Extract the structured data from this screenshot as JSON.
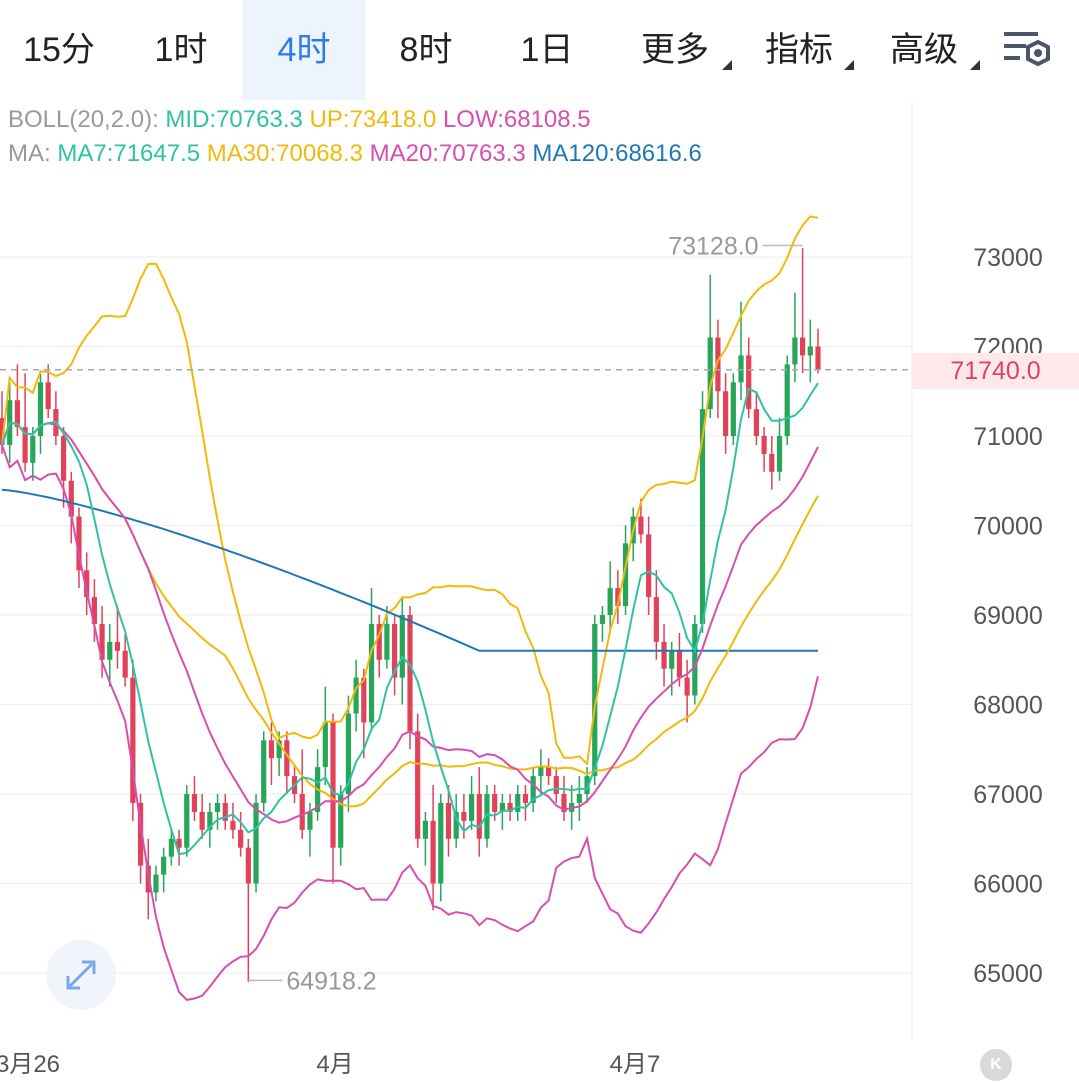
{
  "tabs": [
    {
      "label": "15分",
      "active": false
    },
    {
      "label": "1时",
      "active": false
    },
    {
      "label": "4时",
      "active": true
    },
    {
      "label": "8时",
      "active": false
    },
    {
      "label": "1日",
      "active": false
    },
    {
      "label": "更多",
      "active": false,
      "dropdown": true
    },
    {
      "label": "指标",
      "active": false,
      "dropdown": true
    },
    {
      "label": "高级",
      "active": false,
      "dropdown": true
    }
  ],
  "settings_icon": "chart-settings-icon",
  "boll_legend": {
    "prefix": "BOLL(20,2.0):",
    "mid": "MID:70763.3",
    "up": "UP:73418.0",
    "low": "LOW:68108.5"
  },
  "ma_legend": {
    "prefix": "MA:",
    "ma7": "MA7:71647.5",
    "ma30": "MA30:70068.3",
    "ma20": "MA20:70763.3",
    "ma120": "MA120:68616.6"
  },
  "current_price": "71740.0",
  "expand_icon": "expand-icon",
  "k_button": "K",
  "colors": {
    "up": "#27a65a",
    "down": "#e0425a",
    "ma7": "#2fc2a3",
    "ma30": "#f0b90b",
    "ma20": "#d64fb0",
    "ma120": "#1f78b4",
    "boll": "#f0b90b",
    "grid": "#eeeeee"
  },
  "chart_data": {
    "type": "candlestick",
    "y_ticks": [
      65000,
      66000,
      67000,
      68000,
      69000,
      70000,
      71000,
      72000,
      73000
    ],
    "y_tick_labels": [
      "65000",
      "66000",
      "67000",
      "68000",
      "69000",
      "70000",
      "71000",
      "72000",
      "73000"
    ],
    "x_labels": [
      "3月26",
      "4月",
      "4月7"
    ],
    "annotations": [
      {
        "label": "73128.0",
        "value": 73128.0
      },
      {
        "label": "64918.2",
        "value": 64918.2
      }
    ],
    "candles": [
      [
        71200,
        71500,
        70800,
        70900
      ],
      [
        70900,
        71600,
        70700,
        71400
      ],
      [
        71400,
        71800,
        71000,
        71100
      ],
      [
        71100,
        71700,
        70600,
        70700
      ],
      [
        70700,
        71100,
        70500,
        71000
      ],
      [
        71000,
        71700,
        70800,
        71600
      ],
      [
        71600,
        71800,
        71200,
        71300
      ],
      [
        71300,
        71500,
        70900,
        71000
      ],
      [
        71000,
        71100,
        70200,
        70500
      ],
      [
        70500,
        70600,
        69800,
        70100
      ],
      [
        70100,
        70200,
        69300,
        69500
      ],
      [
        69500,
        69700,
        69000,
        69200
      ],
      [
        69200,
        69400,
        68700,
        68900
      ],
      [
        68900,
        69100,
        68300,
        68500
      ],
      [
        68500,
        68900,
        68200,
        68700
      ],
      [
        68700,
        69100,
        68400,
        68600
      ],
      [
        68600,
        68800,
        68200,
        68300
      ],
      [
        68300,
        68500,
        66700,
        66900
      ],
      [
        66900,
        67000,
        66000,
        66200
      ],
      [
        66200,
        66500,
        65600,
        65900
      ],
      [
        65900,
        66200,
        65800,
        66100
      ],
      [
        66100,
        66400,
        65900,
        66300
      ],
      [
        66300,
        66600,
        66200,
        66500
      ],
      [
        66500,
        66600,
        66200,
        66400
      ],
      [
        66400,
        67100,
        66300,
        67000
      ],
      [
        67000,
        67200,
        66700,
        66800
      ],
      [
        66800,
        67000,
        66500,
        66600
      ],
      [
        66600,
        66900,
        66400,
        66800
      ],
      [
        66800,
        67000,
        66600,
        66900
      ],
      [
        66900,
        67000,
        66600,
        66700
      ],
      [
        66700,
        66900,
        66500,
        66600
      ],
      [
        66600,
        66800,
        66300,
        66400
      ],
      [
        66400,
        66500,
        64900,
        66000
      ],
      [
        66000,
        67000,
        65900,
        66900
      ],
      [
        66900,
        67700,
        66800,
        67600
      ],
      [
        67600,
        67800,
        67100,
        67400
      ],
      [
        67400,
        67700,
        67200,
        67600
      ],
      [
        67600,
        67700,
        67000,
        67200
      ],
      [
        67200,
        67300,
        66900,
        67000
      ],
      [
        67000,
        67500,
        66500,
        66600
      ],
      [
        66600,
        66900,
        66300,
        66800
      ],
      [
        66800,
        67500,
        66700,
        67300
      ],
      [
        67300,
        68200,
        67100,
        67800
      ],
      [
        67800,
        67900,
        66000,
        66400
      ],
      [
        66400,
        67100,
        66200,
        67000
      ],
      [
        67000,
        68100,
        66800,
        67900
      ],
      [
        67900,
        68500,
        67700,
        68300
      ],
      [
        68300,
        68400,
        67400,
        67800
      ],
      [
        67800,
        69300,
        67700,
        68900
      ],
      [
        68900,
        69000,
        68300,
        68500
      ],
      [
        68500,
        69100,
        68400,
        68900
      ],
      [
        68900,
        69000,
        68100,
        68300
      ],
      [
        68300,
        69200,
        68000,
        69000
      ],
      [
        69000,
        69100,
        67500,
        67700
      ],
      [
        67700,
        67900,
        66400,
        66500
      ],
      [
        66500,
        66800,
        66200,
        66700
      ],
      [
        66700,
        67100,
        65700,
        66000
      ],
      [
        66000,
        67000,
        65800,
        66900
      ],
      [
        66900,
        67100,
        66300,
        66500
      ],
      [
        66500,
        67000,
        66400,
        66800
      ],
      [
        66800,
        67000,
        66500,
        66700
      ],
      [
        66700,
        67200,
        66600,
        67000
      ],
      [
        67000,
        67300,
        66300,
        66500
      ],
      [
        66500,
        67100,
        66400,
        67000
      ],
      [
        67000,
        67100,
        66700,
        66800
      ],
      [
        66800,
        67000,
        66600,
        66900
      ],
      [
        66900,
        67000,
        66700,
        66800
      ],
      [
        66800,
        67100,
        66700,
        67000
      ],
      [
        67000,
        67100,
        66700,
        66900
      ],
      [
        66900,
        67300,
        66800,
        67200
      ],
      [
        67200,
        67500,
        67000,
        67300
      ],
      [
        67300,
        67400,
        67100,
        67200
      ],
      [
        67200,
        67300,
        66900,
        67000
      ],
      [
        67000,
        67200,
        66700,
        66800
      ],
      [
        66800,
        67100,
        66600,
        66900
      ],
      [
        66900,
        67200,
        66700,
        67000
      ],
      [
        67000,
        67300,
        66900,
        67200
      ],
      [
        67200,
        69000,
        67100,
        68900
      ],
      [
        68900,
        69100,
        68700,
        69000
      ],
      [
        69000,
        69600,
        68800,
        69300
      ],
      [
        69300,
        69500,
        68900,
        69100
      ],
      [
        69100,
        70000,
        69000,
        69800
      ],
      [
        69800,
        70200,
        69600,
        70100
      ],
      [
        70100,
        70300,
        69800,
        69900
      ],
      [
        69900,
        70100,
        69000,
        69200
      ],
      [
        69200,
        69500,
        68500,
        68700
      ],
      [
        68700,
        68900,
        68200,
        68400
      ],
      [
        68400,
        68700,
        68100,
        68600
      ],
      [
        68600,
        68800,
        68200,
        68300
      ],
      [
        68300,
        68500,
        67800,
        68100
      ],
      [
        68100,
        69000,
        68000,
        68900
      ],
      [
        68900,
        71500,
        68800,
        71300
      ],
      [
        71300,
        72800,
        71200,
        72100
      ],
      [
        72100,
        72300,
        71200,
        71500
      ],
      [
        71500,
        71700,
        70800,
        71000
      ],
      [
        71000,
        71700,
        70900,
        71600
      ],
      [
        71600,
        72500,
        71400,
        71900
      ],
      [
        71900,
        72100,
        71200,
        71300
      ],
      [
        71300,
        71500,
        70900,
        71000
      ],
      [
        71000,
        71100,
        70600,
        70800
      ],
      [
        70800,
        71000,
        70400,
        70600
      ],
      [
        70600,
        71200,
        70500,
        71000
      ],
      [
        71000,
        71900,
        70900,
        71800
      ],
      [
        71800,
        72600,
        71600,
        72100
      ],
      [
        72100,
        73100,
        71700,
        71900
      ],
      [
        71900,
        72300,
        71600,
        72000
      ],
      [
        72000,
        72200,
        71700,
        71740
      ]
    ]
  }
}
